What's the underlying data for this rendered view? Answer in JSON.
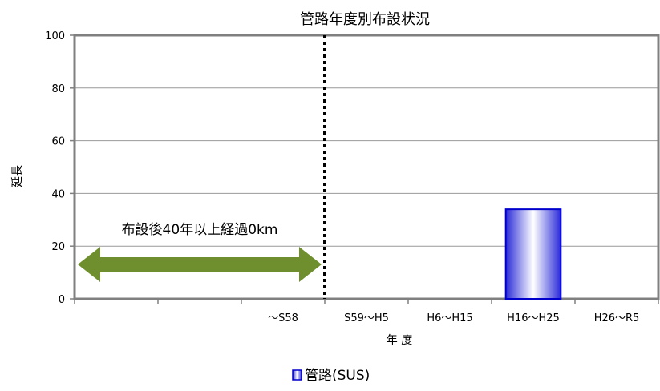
{
  "chart_data": {
    "type": "bar",
    "title": "管路年度別布設状況",
    "xlabel": "年 度",
    "ylabel": "延長",
    "categories": [
      "",
      "",
      "～S58",
      "S59～H5",
      "H6～H15",
      "H16～H25",
      "H26～R5"
    ],
    "series": [
      {
        "name": "管路(SUS)",
        "values": [
          0,
          0,
          0,
          0,
          0,
          34,
          0
        ]
      }
    ],
    "ylim": [
      0,
      100
    ],
    "yticks": [
      0,
      20,
      40,
      60,
      80,
      100
    ],
    "grid": true,
    "legend_position": "bottom",
    "annotations": {
      "arrow_label": "布設後40年以上経過0km"
    },
    "colors": {
      "bar_edge": "#0000cc",
      "bar_center": "#ffffff",
      "bar_side": "#2b2bd9",
      "arrow": "#6f8f2f",
      "plot_border": "#808080",
      "gridline": "#999999"
    }
  }
}
